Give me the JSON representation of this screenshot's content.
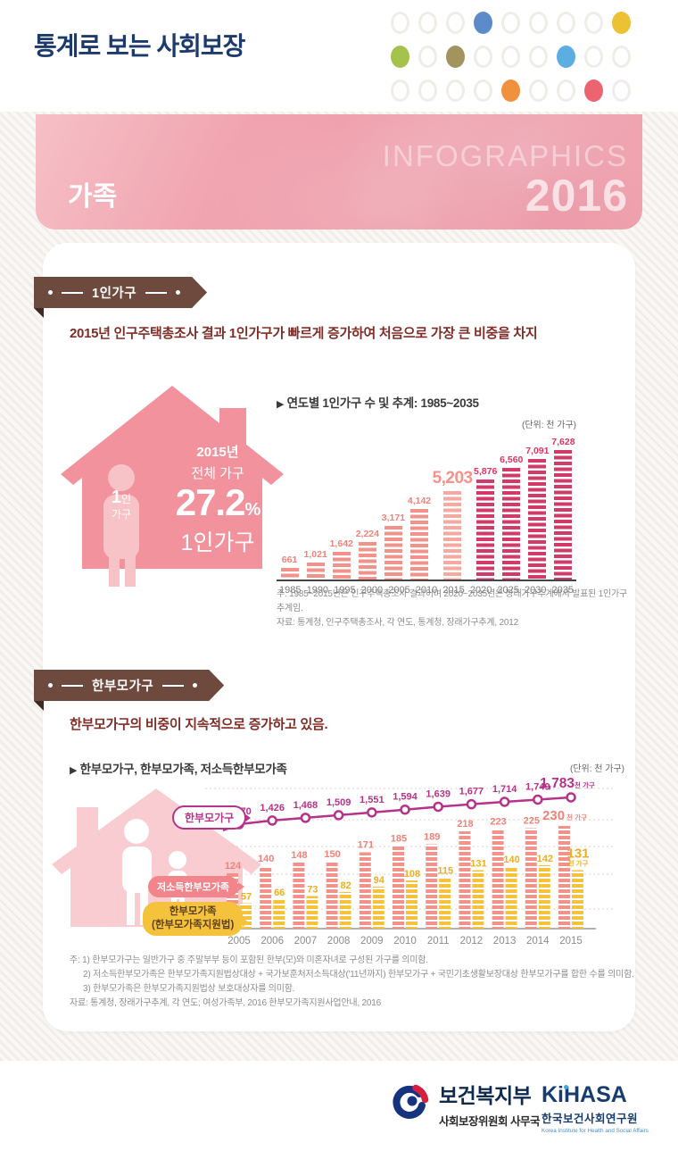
{
  "page": {
    "title": "통계로 보는 사회보장"
  },
  "header": {
    "dots": [
      [
        "none",
        "none",
        "none",
        "#5b8bc9",
        "none",
        "none",
        "none",
        "none",
        "#ecc133"
      ],
      [
        "#a5c24d",
        "none",
        "#a3945f",
        "none",
        "none",
        "none",
        "#5cade0",
        "none",
        "none"
      ],
      [
        "none",
        "none",
        "none",
        "none",
        "#f0923d",
        "none",
        "none",
        "#ec6470",
        "none"
      ]
    ]
  },
  "icons": {
    "bullet": "▶"
  },
  "banner": {
    "category": "가족",
    "brand_line1": "INFOGRAPHICS",
    "brand_year": "2016"
  },
  "section1": {
    "ribbon": "1인가구",
    "headline": "2015년 인구주택총조사 결과 1인가구가 빠르게 증가하여 처음으로 가장 큰 비중을 차지",
    "house": {
      "figure_num": "1",
      "figure_num_suffix": "인",
      "figure_line2": "가구",
      "year": "2015년",
      "scope": "전체 가구",
      "percent": "27.2",
      "percent_suffix": "%",
      "label": "1인가구"
    },
    "chart_title": "연도별 1인가구 수 및 추계: 1985~2035",
    "unit": "(단위: 천 가구)",
    "notes": [
      "주:  1985~2015년은 인구주택총조사 결과이며 2020~2035년은 장래가구추계에서 발표된 1인가구 추계임.",
      "자료:  통계청, 인구주택총조사, 각 연도, 통계청, 장래가구추계, 2012"
    ]
  },
  "section2": {
    "ribbon": "한부모가구",
    "headline": "한부모가구의 비중이 지속적으로 증가하고 있음.",
    "chart_title": "한부모가구, 한부모가족, 저소득한부모가족",
    "unit": "(단위: 천 가구)",
    "labels": {
      "line": "한부모가구",
      "pink": "저소득한부모가족",
      "yellow_line1": "한부모가족",
      "yellow_line2": "(한부모가족지원법)"
    },
    "notes": [
      "주: 1) 한부모가구는 일반가구 중 주말부부 등이 포함된 한부(모)와 미혼자녀로 구성된 가구를 의미함.",
      "2) 저소득한부모가족은 한부모가족지원법상대상 + 국가보훈처저소득대상('11년까지) 한부모가구 + 국민기초생활보장대상 한부모가구를 합한 수를 의미함.",
      "3) 한부모가족은 한부모가족지원법상 보호대상자를 의미함.",
      "자료: 통계청, 장래가구추계, 각 연도; 여성가족부, 2016 한부모가족지원사업안내, 2016"
    ]
  },
  "footer": {
    "mohw": {
      "name": "보건복지부",
      "sub": "사회보장위원회 사무국"
    },
    "kihasa": {
      "name": "KiHASA",
      "kr": "한국보건사회연구원",
      "en": "Korea Institute for Health and Social Affairs"
    }
  },
  "chart_data": [
    {
      "type": "bar",
      "title": "연도별 1인가구 수 및 추계: 1985~2035",
      "unit": "천 가구",
      "categories": [
        "1985",
        "1990",
        "1995",
        "2000",
        "2005",
        "2010",
        "2015",
        "2020",
        "2025",
        "2030",
        "2035"
      ],
      "values": [
        661,
        1021,
        1642,
        2224,
        3171,
        4142,
        5203,
        5876,
        6560,
        7091,
        7628
      ],
      "ylim": [
        0,
        7628
      ],
      "highlight_index": 6,
      "projection_start_index": 7,
      "colors": {
        "actual_bar": "#f2938b",
        "actual_label": "#ef8379",
        "highlight_bar": "#f6a9a1",
        "highlight_label": "#f5928b",
        "projection_bar": "#d23b69",
        "projection_label": "#e0335f"
      }
    },
    {
      "type": "line+bar",
      "title": "한부모가구, 한부모가족, 저소득한부모가족",
      "unit": "천 가구",
      "unit_suffix": "천 가구",
      "categories": [
        "2005",
        "2006",
        "2007",
        "2008",
        "2009",
        "2010",
        "2011",
        "2012",
        "2013",
        "2014",
        "2015"
      ],
      "series": [
        {
          "name": "한부모가구",
          "type": "line",
          "values": [
            1370,
            1426,
            1468,
            1509,
            1551,
            1594,
            1639,
            1677,
            1714,
            1749,
            1783
          ],
          "color": "#b5338a"
        },
        {
          "name": "저소득한부모가족",
          "type": "bar",
          "values": [
            124,
            140,
            148,
            150,
            171,
            185,
            189,
            218,
            223,
            225,
            230
          ],
          "color": "#f2938b",
          "label_color": "#ef8379"
        },
        {
          "name": "한부모가족(한부모가족지원법)",
          "type": "bar",
          "values": [
            57,
            66,
            73,
            82,
            94,
            108,
            115,
            131,
            140,
            142,
            131
          ],
          "color": "#f5c23c",
          "label_color": "#eeae1f"
        }
      ],
      "grid": "dotted",
      "legend_position": "left"
    }
  ]
}
